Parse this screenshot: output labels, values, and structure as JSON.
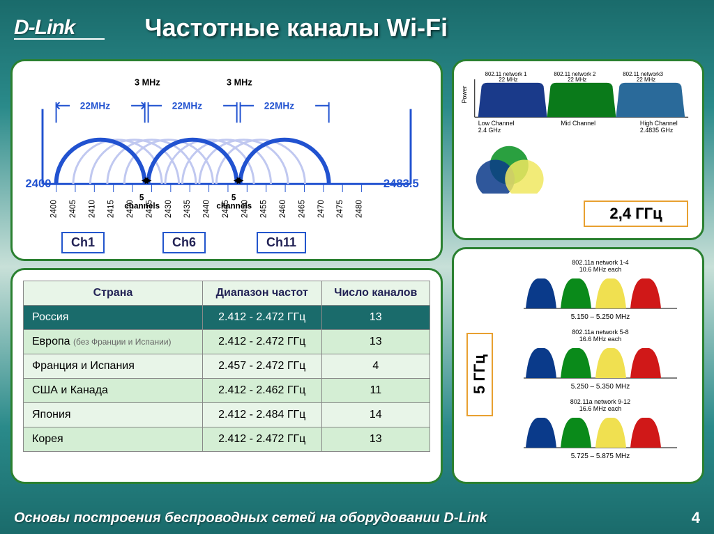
{
  "logo": "D-Link",
  "title": "Частотные каналы Wi-Fi",
  "footer": "Основы построения беспроводных сетей на оборудовании D-Link",
  "page": "4",
  "colors": {
    "panel_border": "#2a8030",
    "axis": "#2152d0",
    "arc_main": "#2152d0",
    "arc_other": "#c0c8f0",
    "badge_border": "#e8a030"
  },
  "channel_diagram": {
    "freq_start": "2400",
    "freq_end": "2483.5",
    "bw_label": "22MHz",
    "gap_label": "3 MHz",
    "ticks": [
      "2400",
      "2405",
      "2410",
      "2415",
      "2420",
      "2425",
      "2430",
      "2435",
      "2440",
      "2445",
      "2450",
      "2455",
      "2460",
      "2465",
      "2470",
      "2475",
      "2480"
    ],
    "ch_labels": [
      "Ch1",
      "Ch6",
      "Ch11"
    ],
    "sep_label": "5\nchannels"
  },
  "table": {
    "headers": [
      "Страна",
      "Диапазон частот",
      "Число каналов"
    ],
    "rows": [
      {
        "country": "Россия",
        "range": "2.412 - 2.472 ГГц",
        "chans": "13",
        "hl": true
      },
      {
        "country": "Европа (без Франции и Испании)",
        "range": "2.412 - 2.472 ГГц",
        "chans": "13"
      },
      {
        "country": "Франция и Испания",
        "range": "2.457 - 2.472 ГГц",
        "chans": "4"
      },
      {
        "country": "США и Канада",
        "range": "2.412 - 2.462 ГГц",
        "chans": "11"
      },
      {
        "country": "Япония",
        "range": "2.412 - 2.484 ГГц",
        "chans": "14"
      },
      {
        "country": "Корея",
        "range": "2.412 - 2.472 ГГц",
        "chans": "13"
      }
    ]
  },
  "panel_24": {
    "badge": "2,4 ГГц",
    "net_labels": [
      "802.11 network 1\n22 MHz",
      "802.11 network 2\n22 MHz",
      "802.11 network3\n22 MHz"
    ],
    "bottom_labels": [
      "Low Channel\n2.4 GHz",
      "Mid Channel",
      "High Channel\n2.4835 GHz"
    ],
    "power_label": "Power",
    "block_colors": [
      "#1a3a8a",
      "#0a7a1a",
      "#2a6a9a"
    ],
    "circle_colors": [
      "#2aa040",
      "#0a3a8a",
      "#f0e860"
    ]
  },
  "panel_5": {
    "badge": "5 ГГц",
    "groups": [
      {
        "label": "802.11a network 1-4\n10.6 MHz each",
        "range": "5.150 – 5.250 MHz"
      },
      {
        "label": "802.11a network 5-8\n16.6 MHz each",
        "range": "5.250 – 5.350 MHz"
      },
      {
        "label": "802.11a network 9-12\n16.6 MHz each",
        "range": "5.725 – 5.875 MHz"
      }
    ],
    "hump_colors": [
      "#0a3a8a",
      "#0a8a1a",
      "#f0e050",
      "#d01818"
    ]
  }
}
